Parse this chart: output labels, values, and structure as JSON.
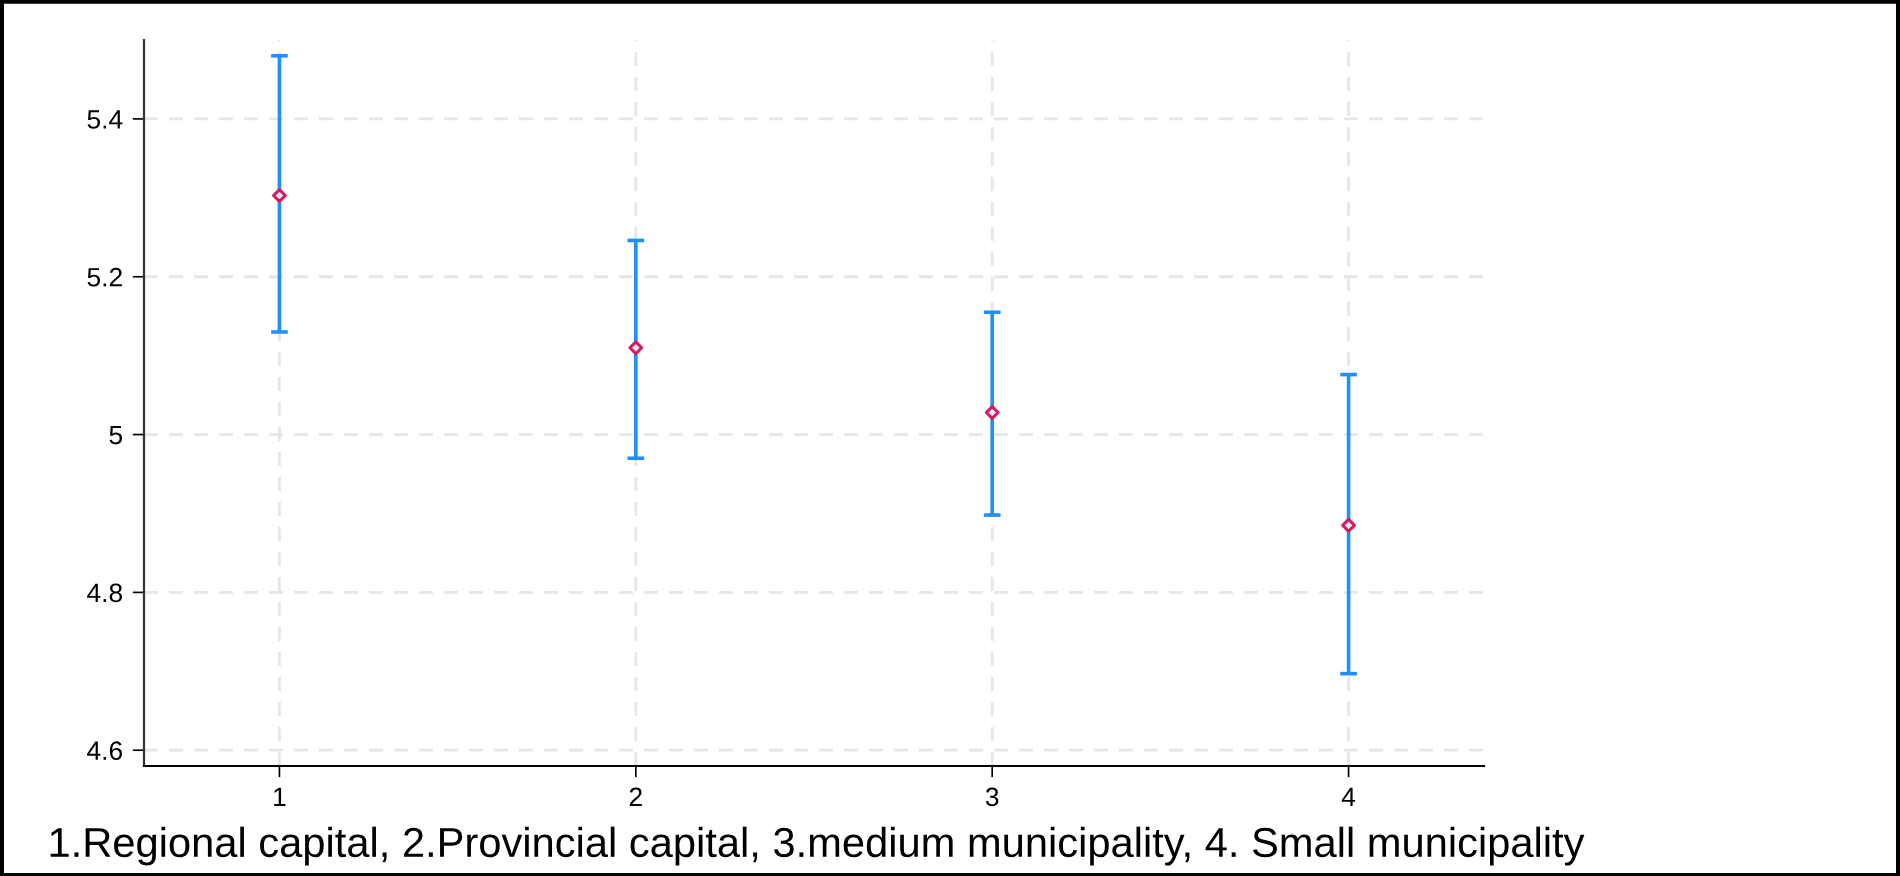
{
  "chart_data": {
    "type": "scatter",
    "x": [
      1,
      2,
      3,
      4
    ],
    "values": [
      5.303,
      5.11,
      5.028,
      4.885
    ],
    "errors": [
      [
        5.13,
        5.48
      ],
      [
        4.97,
        5.246
      ],
      [
        4.898,
        5.155
      ],
      [
        4.697,
        5.076
      ]
    ],
    "color": "#d81b60",
    "marker": "diamond",
    "xlim": [
      0.62,
      4.38
    ],
    "xticks": [
      1,
      2,
      3,
      4
    ],
    "ylim": [
      4.58,
      5.5
    ],
    "yticks": [
      4.6,
      4.8,
      5,
      5.2,
      5.4
    ],
    "grid": true,
    "annotations": [
      "1.Regional capital, 2.Provincial capital, 3.medium municipality, 4. Small municipality"
    ]
  }
}
